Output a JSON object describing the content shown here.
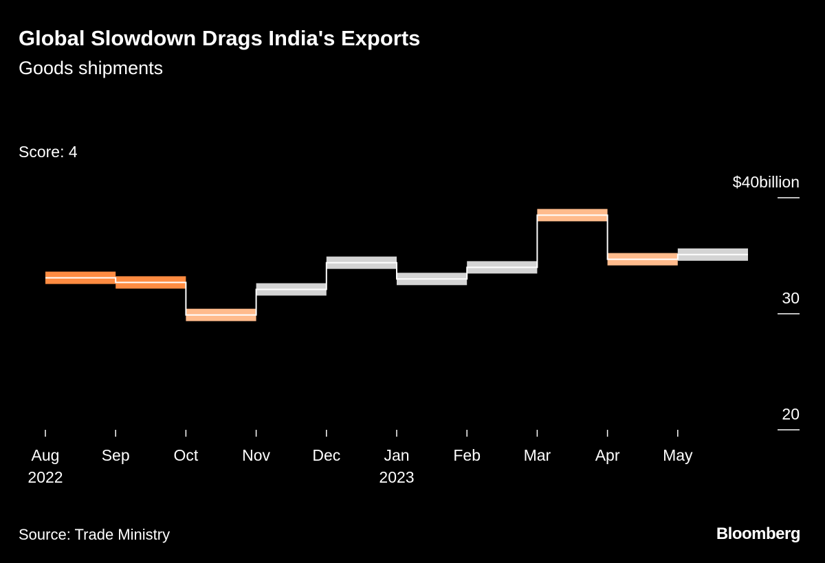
{
  "title": "Global Slowdown Drags India's Exports",
  "subtitle": "Goods shipments",
  "score_label": "Score: 4",
  "source": "Source: Trade Ministry",
  "logo": "Bloomberg",
  "chart_data": {
    "type": "step",
    "title": "Global Slowdown Drags India's Exports",
    "subtitle": "Goods shipments",
    "categories": [
      "Aug 2022",
      "Sep 2022",
      "Oct 2022",
      "Nov 2022",
      "Dec 2022",
      "Jan 2023",
      "Feb 2023",
      "Mar 2023",
      "Apr 2023",
      "May 2023"
    ],
    "x_tick_labels": [
      [
        "Aug",
        "2022"
      ],
      [
        "Sep",
        ""
      ],
      [
        "Oct",
        ""
      ],
      [
        "Nov",
        ""
      ],
      [
        "Dec",
        ""
      ],
      [
        "Jan",
        "2023"
      ],
      [
        "Feb",
        ""
      ],
      [
        "Mar",
        ""
      ],
      [
        "Apr",
        ""
      ],
      [
        "May",
        ""
      ]
    ],
    "values": [
      33.1,
      32.7,
      29.9,
      32.1,
      34.4,
      33.0,
      34.0,
      38.5,
      34.7,
      35.1
    ],
    "bar_colors": [
      "#ff8c42",
      "#ff8c42",
      "#ffbb8c",
      "#d4d4d4",
      "#d4d4d4",
      "#d4d4d4",
      "#d4d4d4",
      "#ffbb8c",
      "#ffbb8c",
      "#d4d4d4"
    ],
    "line_color": "#ffffff",
    "y_ticks": [
      {
        "value": 40,
        "label": "$40billion"
      },
      {
        "value": 30,
        "label": "30"
      },
      {
        "value": 20,
        "label": "20"
      }
    ],
    "ylim": [
      20,
      40
    ],
    "y_axis_position": "right",
    "grid": false
  }
}
